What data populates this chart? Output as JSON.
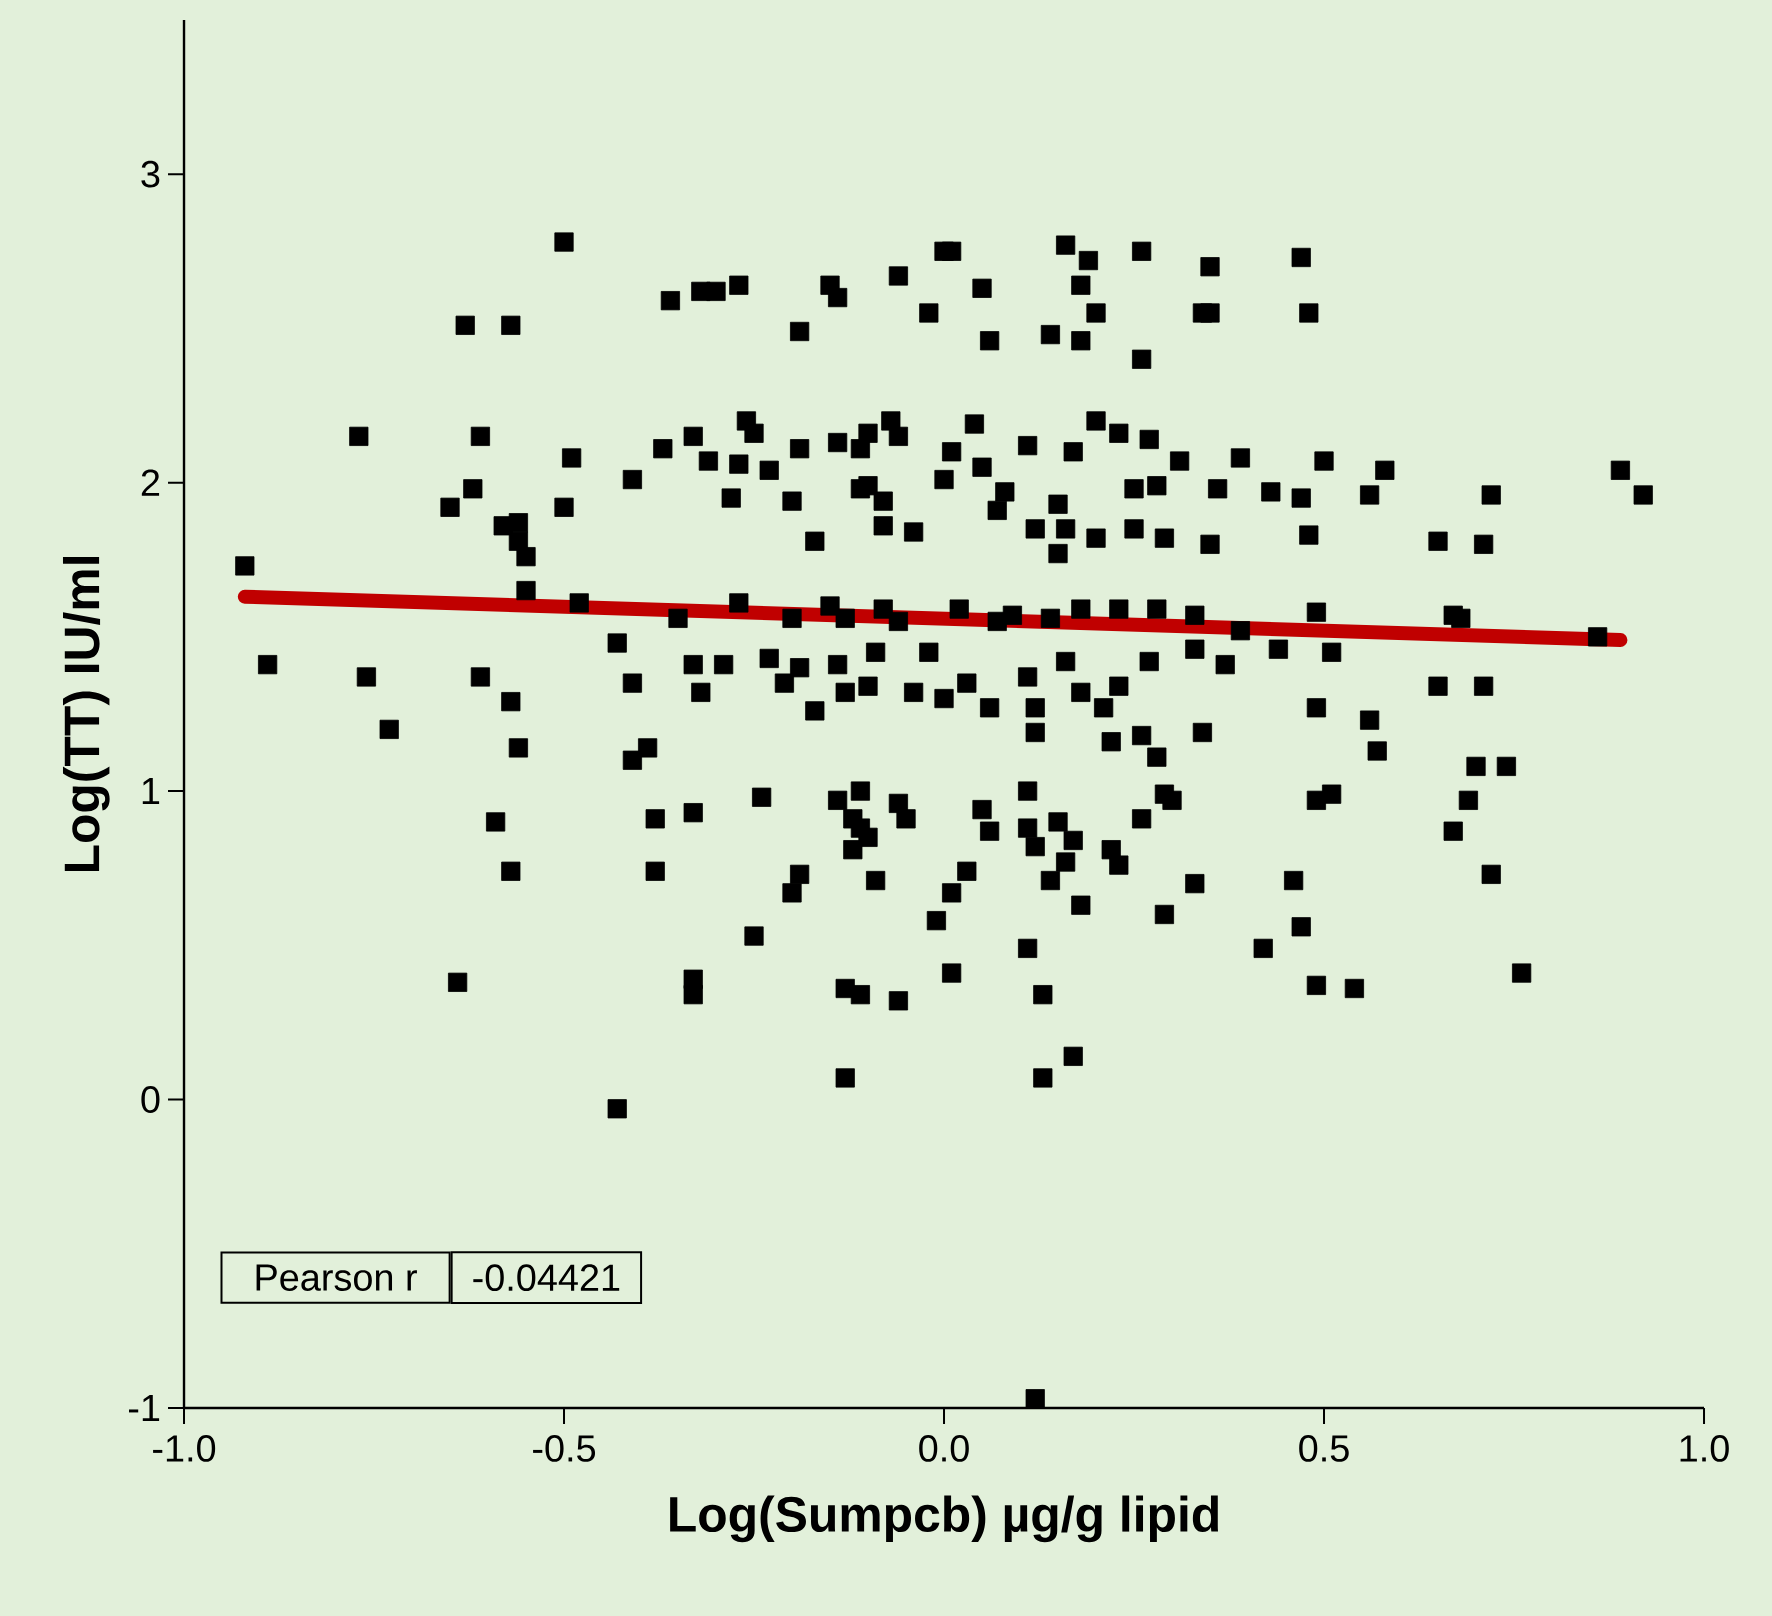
{
  "chart_data": {
    "type": "scatter",
    "xlabel": "Log(Sumpcb) µg/g lipid",
    "ylabel": "Log(TT) IU/ml",
    "xlim": [
      -1,
      1
    ],
    "ylim": [
      -1,
      3.5
    ],
    "xticks": [
      {
        "value": -1,
        "label": "-1.0"
      },
      {
        "value": -0.5,
        "label": "-0.5"
      },
      {
        "value": 0,
        "label": "0.0"
      },
      {
        "value": 0.5,
        "label": "0.5"
      },
      {
        "value": 1,
        "label": "1.0"
      }
    ],
    "yticks": [
      -1,
      0,
      1,
      2,
      3
    ],
    "annotations": [
      "Pearson r",
      "-0.04421"
    ],
    "series": [
      {
        "marker": "square",
        "color": "#000000",
        "x": [
          -0.5,
          -0.63,
          -0.57,
          -0.36,
          -0.32,
          -0.3,
          -0.27,
          -0.15,
          -0.14,
          -0.19,
          -0.06,
          0.0,
          0.01,
          -0.02,
          0.05,
          0.06,
          0.16,
          0.19,
          0.18,
          0.2,
          0.14,
          0.18,
          0.26,
          0.26,
          0.35,
          0.34,
          0.35,
          0.47,
          0.48,
          -0.77,
          -0.61,
          -0.62,
          -0.65,
          -0.49,
          -0.5,
          -0.58,
          -0.56,
          -0.55,
          -0.55,
          -0.56,
          -0.48,
          -0.41,
          -0.37,
          -0.33,
          -0.31,
          -0.28,
          -0.26,
          -0.25,
          -0.27,
          -0.23,
          -0.19,
          -0.2,
          -0.17,
          -0.14,
          -0.11,
          -0.1,
          -0.07,
          -0.06,
          -0.11,
          -0.1,
          -0.08,
          -0.08,
          -0.04,
          0.0,
          0.01,
          0.04,
          0.05,
          0.07,
          0.08,
          0.11,
          0.17,
          0.12,
          0.15,
          0.16,
          0.2,
          0.23,
          0.27,
          0.25,
          0.28,
          0.31,
          0.36,
          0.39,
          0.43,
          0.47,
          0.5,
          0.58,
          0.56,
          0.65,
          0.72,
          0.71,
          0.89,
          0.92,
          0.15,
          0.2,
          0.25,
          0.29,
          0.35,
          0.48,
          -0.92,
          -0.35,
          -0.27,
          -0.2,
          -0.15,
          -0.13,
          -0.09,
          -0.08,
          -0.06,
          0.02,
          0.07,
          0.09,
          0.14,
          0.18,
          0.23,
          0.28,
          0.33,
          0.49,
          0.67,
          0.68,
          0.86,
          -0.89,
          -0.76,
          -0.73,
          -0.61,
          -0.57,
          -0.56,
          -0.43,
          -0.41,
          -0.39,
          -0.33,
          -0.32,
          -0.29,
          -0.23,
          -0.21,
          -0.19,
          -0.17,
          -0.14,
          -0.13,
          -0.1,
          -0.04,
          -0.02,
          0.0,
          0.03,
          0.06,
          0.11,
          0.12,
          0.16,
          0.18,
          0.21,
          0.23,
          0.27,
          0.33,
          0.37,
          0.39,
          0.44,
          0.51,
          0.49,
          0.56,
          0.57,
          0.65,
          0.71,
          0.7,
          0.74,
          0.69,
          0.67,
          0.72,
          0.76,
          -0.59,
          -0.57,
          -0.64,
          -0.41,
          -0.38,
          -0.38,
          -0.33,
          -0.33,
          -0.33,
          -0.25,
          -0.24,
          -0.19,
          -0.2,
          -0.14,
          -0.11,
          -0.12,
          -0.11,
          -0.12,
          -0.1,
          -0.06,
          -0.05,
          -0.09,
          -0.13,
          -0.11,
          -0.06,
          -0.13,
          0.05,
          0.03,
          0.01,
          -0.01,
          0.01,
          0.06,
          0.11,
          0.12,
          0.11,
          0.12,
          0.15,
          0.17,
          0.18,
          0.16,
          0.14,
          0.11,
          0.13,
          0.17,
          0.13,
          0.22,
          0.26,
          0.29,
          0.3,
          0.33,
          0.29,
          0.23,
          0.46,
          0.49,
          0.51,
          0.47,
          0.42,
          0.49,
          0.54,
          -0.43,
          0.12,
          0.26,
          0.28,
          0.34,
          0.22
        ],
        "values": [
          2.78,
          2.51,
          2.51,
          2.59,
          2.62,
          2.62,
          2.64,
          2.64,
          2.6,
          2.49,
          2.67,
          2.75,
          2.75,
          2.55,
          2.63,
          2.46,
          2.77,
          2.72,
          2.64,
          2.55,
          2.48,
          2.46,
          2.75,
          2.4,
          2.7,
          2.55,
          2.55,
          2.73,
          2.55,
          2.15,
          2.15,
          1.98,
          1.92,
          2.08,
          1.92,
          1.86,
          1.81,
          1.76,
          1.65,
          1.87,
          1.61,
          2.01,
          2.11,
          2.15,
          2.07,
          1.95,
          2.2,
          2.16,
          2.06,
          2.04,
          2.11,
          1.94,
          1.81,
          2.13,
          2.11,
          2.16,
          2.2,
          2.15,
          1.98,
          1.99,
          1.94,
          1.86,
          1.84,
          2.01,
          2.1,
          2.19,
          2.05,
          1.91,
          1.97,
          2.12,
          2.1,
          1.85,
          1.93,
          1.85,
          2.2,
          2.16,
          2.14,
          1.98,
          1.99,
          2.07,
          1.98,
          2.08,
          1.97,
          1.95,
          2.07,
          2.04,
          1.96,
          1.81,
          1.96,
          1.8,
          2.04,
          1.96,
          1.77,
          1.82,
          1.85,
          1.82,
          1.8,
          1.83,
          1.73,
          1.56,
          1.61,
          1.56,
          1.6,
          1.56,
          1.45,
          1.59,
          1.55,
          1.59,
          1.55,
          1.57,
          1.56,
          1.59,
          1.59,
          1.59,
          1.57,
          1.58,
          1.57,
          1.56,
          1.5,
          1.41,
          1.37,
          1.2,
          1.37,
          1.29,
          1.14,
          1.48,
          1.35,
          1.14,
          1.41,
          1.32,
          1.41,
          1.43,
          1.35,
          1.4,
          1.26,
          1.41,
          1.32,
          1.34,
          1.32,
          1.45,
          1.3,
          1.35,
          1.27,
          1.37,
          1.27,
          1.42,
          1.32,
          1.27,
          1.34,
          1.42,
          1.46,
          1.41,
          1.52,
          1.46,
          1.45,
          1.27,
          1.23,
          1.13,
          1.34,
          1.34,
          1.08,
          1.08,
          0.97,
          0.87,
          0.73,
          0.41,
          0.9,
          0.74,
          0.38,
          1.1,
          0.91,
          0.74,
          0.93,
          0.39,
          0.34,
          0.53,
          0.98,
          0.73,
          0.67,
          0.97,
          1.0,
          0.91,
          0.88,
          0.81,
          0.85,
          0.96,
          0.91,
          0.71,
          0.36,
          0.34,
          0.32,
          0.07,
          0.94,
          0.74,
          0.67,
          0.58,
          0.41,
          0.87,
          0.88,
          0.82,
          1.0,
          1.19,
          0.9,
          0.84,
          0.63,
          0.77,
          0.71,
          0.49,
          0.34,
          0.14,
          0.07,
          0.81,
          0.91,
          0.99,
          0.97,
          0.7,
          0.6,
          0.76,
          0.71,
          0.97,
          0.99,
          0.56,
          0.49,
          0.37,
          0.36,
          -0.03,
          -0.97,
          1.18,
          1.11,
          1.19,
          1.16
        ]
      },
      {
        "type": "line",
        "color": "#c00000",
        "x": [
          -0.92,
          0.89
        ],
        "values": [
          1.63,
          1.49
        ]
      }
    ]
  }
}
